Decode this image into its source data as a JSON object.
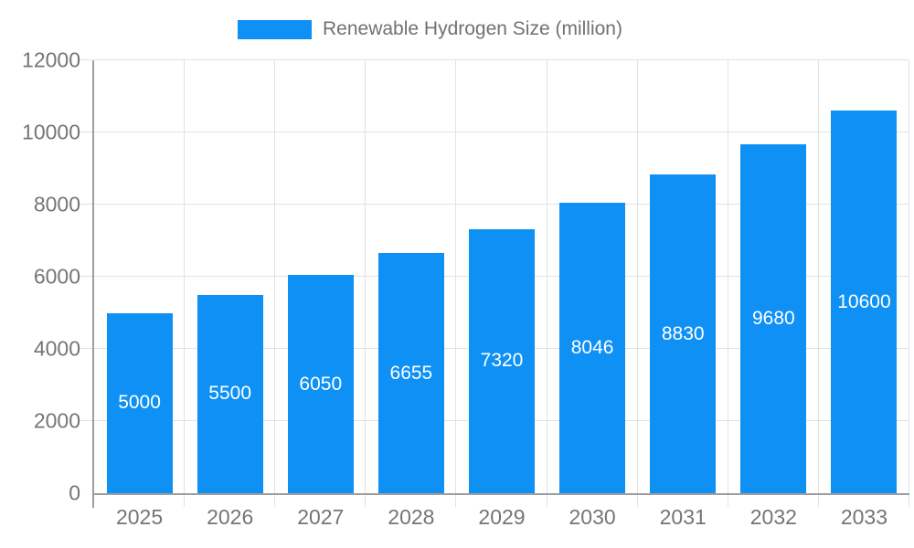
{
  "chart_data": {
    "type": "bar",
    "title": "",
    "legend": "Renewable Hydrogen Size (million)",
    "legend_position": "top",
    "categories": [
      "2025",
      "2026",
      "2027",
      "2028",
      "2029",
      "2030",
      "2031",
      "2032",
      "2033"
    ],
    "values": [
      5000,
      5500,
      6050,
      6655,
      7320,
      8046,
      8830,
      9680,
      10600
    ],
    "bar_labels": [
      "5000",
      "5500",
      "6050",
      "6655",
      "7320",
      "8046",
      "8830",
      "9680",
      "10600"
    ],
    "xlabel": "",
    "ylabel": "",
    "ylim": [
      0,
      12000
    ],
    "yticks": [
      0,
      2000,
      4000,
      6000,
      8000,
      10000,
      12000
    ],
    "grid": "on",
    "colors": {
      "bar": "#0e90f5",
      "grid": "#e2e2e2",
      "axis": "#9e9e9e",
      "tick_label": "#757575",
      "legend_text": "#717171",
      "bar_label": "#ffffff",
      "background": "#ffffff"
    }
  }
}
